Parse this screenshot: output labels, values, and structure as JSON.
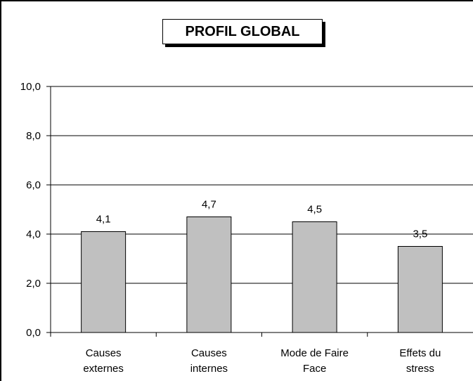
{
  "chart_data": {
    "type": "bar",
    "title": "PROFIL GLOBAL",
    "categories": [
      [
        "Causes",
        "externes"
      ],
      [
        "Causes",
        "internes"
      ],
      [
        "Mode de Faire",
        "Face"
      ],
      [
        "Effets du",
        "stress"
      ]
    ],
    "values": [
      4.1,
      4.7,
      4.5,
      3.5
    ],
    "data_labels": [
      "4,1",
      "4,7",
      "4,5",
      "3,5"
    ],
    "y_ticks": [
      0,
      2,
      4,
      6,
      8,
      10
    ],
    "y_tick_labels": [
      "0,0",
      "2,0",
      "4,0",
      "6,0",
      "8,0",
      "10,0"
    ],
    "ylim": [
      0,
      10
    ],
    "xlabel": "",
    "ylabel": "",
    "grid": true,
    "legend": "none",
    "colors": {
      "bar_fill": "#c0c0c0",
      "bar_stroke": "#000000",
      "grid": "#000000"
    }
  }
}
